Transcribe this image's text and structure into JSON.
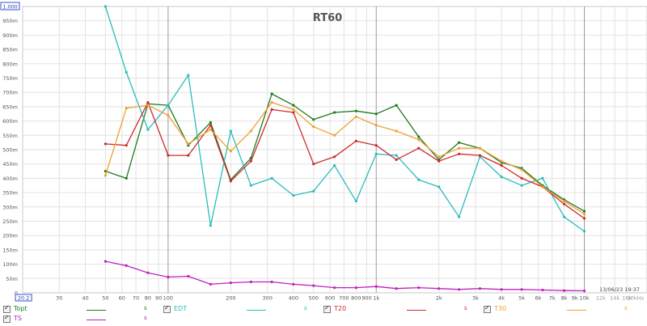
{
  "chart_data": {
    "type": "line",
    "title": "RT60",
    "timestamp": "13/06/23 19:37",
    "xscale": "log",
    "xlim": [
      20,
      20000
    ],
    "ylim": [
      0,
      1.0
    ],
    "x_tick_labels": [
      {
        "v": 20.2,
        "label": "20.2"
      },
      {
        "v": 30,
        "label": "30"
      },
      {
        "v": 40,
        "label": "40"
      },
      {
        "v": 50,
        "label": "50"
      },
      {
        "v": 60,
        "label": "60"
      },
      {
        "v": 70,
        "label": "70"
      },
      {
        "v": 80,
        "label": "80"
      },
      {
        "v": 90,
        "label": "90"
      },
      {
        "v": 100,
        "label": "100"
      },
      {
        "v": 200,
        "label": "200"
      },
      {
        "v": 300,
        "label": "300"
      },
      {
        "v": 400,
        "label": "400"
      },
      {
        "v": 500,
        "label": "500"
      },
      {
        "v": 600,
        "label": "600"
      },
      {
        "v": 700,
        "label": "700"
      },
      {
        "v": 800,
        "label": "800"
      },
      {
        "v": 900,
        "label": "900"
      },
      {
        "v": 1000,
        "label": "1k"
      },
      {
        "v": 2000,
        "label": "2k"
      },
      {
        "v": 3000,
        "label": "3k"
      },
      {
        "v": 4000,
        "label": "4k"
      },
      {
        "v": 5000,
        "label": "5k"
      },
      {
        "v": 6000,
        "label": "6k"
      },
      {
        "v": 7000,
        "label": "7k"
      },
      {
        "v": 8000,
        "label": "8k"
      },
      {
        "v": 9000,
        "label": "9k"
      },
      {
        "v": 10000,
        "label": "10k"
      },
      {
        "v": 12000,
        "label": "12k"
      },
      {
        "v": 14000,
        "label": "14k"
      },
      {
        "v": 16000,
        "label": "16k"
      },
      {
        "v": 20000,
        "label": "20kHz"
      }
    ],
    "y_tick_labels": [
      {
        "v": 0.95,
        "label": "950m"
      },
      {
        "v": 0.9,
        "label": "900m"
      },
      {
        "v": 0.85,
        "label": "850m"
      },
      {
        "v": 0.8,
        "label": "800m"
      },
      {
        "v": 0.75,
        "label": "750m"
      },
      {
        "v": 0.7,
        "label": "700m"
      },
      {
        "v": 0.65,
        "label": "650m"
      },
      {
        "v": 0.6,
        "label": "600m"
      },
      {
        "v": 0.55,
        "label": "550m"
      },
      {
        "v": 0.5,
        "label": "500m"
      },
      {
        "v": 0.45,
        "label": "450m"
      },
      {
        "v": 0.4,
        "label": "400m"
      },
      {
        "v": 0.35,
        "label": "350m"
      },
      {
        "v": 0.3,
        "label": "300m"
      },
      {
        "v": 0.25,
        "label": "250m"
      },
      {
        "v": 0.2,
        "label": "200m"
      },
      {
        "v": 0.15,
        "label": "150m"
      },
      {
        "v": 0.1,
        "label": "100m"
      },
      {
        "v": 0.05,
        "label": "50m"
      },
      {
        "v": 0,
        "label": "0"
      }
    ],
    "y_top_label": "1.000",
    "x": [
      50,
      63,
      80,
      100,
      125,
      160,
      200,
      250,
      315,
      400,
      500,
      630,
      800,
      1000,
      1250,
      1600,
      2000,
      2500,
      3150,
      4000,
      5000,
      6300,
      8000,
      10000
    ],
    "series": [
      {
        "name": "Topt",
        "color": "#1f7a1f",
        "values": [
          0.425,
          0.4,
          0.66,
          0.655,
          0.515,
          0.595,
          0.395,
          0.47,
          0.695,
          0.655,
          0.605,
          0.63,
          0.635,
          0.625,
          0.655,
          0.545,
          0.465,
          0.525,
          0.505,
          0.455,
          0.435,
          0.375,
          0.325,
          0.285
        ]
      },
      {
        "name": "EDT",
        "color": "#2bbcbc",
        "values": [
          1.0,
          0.77,
          0.57,
          0.655,
          0.76,
          0.235,
          0.565,
          0.375,
          0.4,
          0.34,
          0.355,
          0.445,
          0.32,
          0.485,
          0.48,
          0.395,
          0.37,
          0.265,
          0.475,
          0.405,
          0.375,
          0.4,
          0.265,
          0.215
        ]
      },
      {
        "name": "T20",
        "color": "#cc2b2b",
        "values": [
          0.52,
          0.515,
          0.665,
          0.48,
          0.48,
          0.585,
          0.39,
          0.46,
          0.64,
          0.63,
          0.45,
          0.475,
          0.53,
          0.515,
          0.465,
          0.505,
          0.46,
          0.485,
          0.48,
          0.445,
          0.4,
          0.37,
          0.31,
          0.26
        ]
      },
      {
        "name": "T30",
        "color": "#f0a030",
        "values": [
          0.41,
          0.645,
          0.655,
          0.62,
          0.52,
          0.57,
          0.495,
          0.565,
          0.665,
          0.64,
          0.58,
          0.55,
          0.615,
          0.585,
          0.565,
          0.535,
          0.475,
          0.505,
          0.505,
          0.46,
          0.43,
          0.37,
          0.32,
          0.275
        ]
      },
      {
        "name": "TS",
        "color": "#c020c0",
        "values": [
          0.11,
          0.095,
          0.07,
          0.055,
          0.058,
          0.03,
          0.035,
          0.038,
          0.038,
          0.03,
          0.025,
          0.018,
          0.018,
          0.022,
          0.015,
          0.018,
          0.015,
          0.012,
          0.015,
          0.012,
          0.012,
          0.01,
          0.008,
          0.007
        ]
      }
    ],
    "legend": [
      {
        "name": "Topt",
        "unit": "s",
        "color": "#1f7a1f"
      },
      {
        "name": "EDT",
        "unit": "s",
        "color": "#2bbcbc"
      },
      {
        "name": "T20",
        "unit": "s",
        "color": "#cc2b2b"
      },
      {
        "name": "T30",
        "unit": "s",
        "color": "#f0a030"
      },
      {
        "name": "TS",
        "unit": "s",
        "color": "#c020c0"
      }
    ],
    "grid": true,
    "legend_position": "bottom"
  }
}
